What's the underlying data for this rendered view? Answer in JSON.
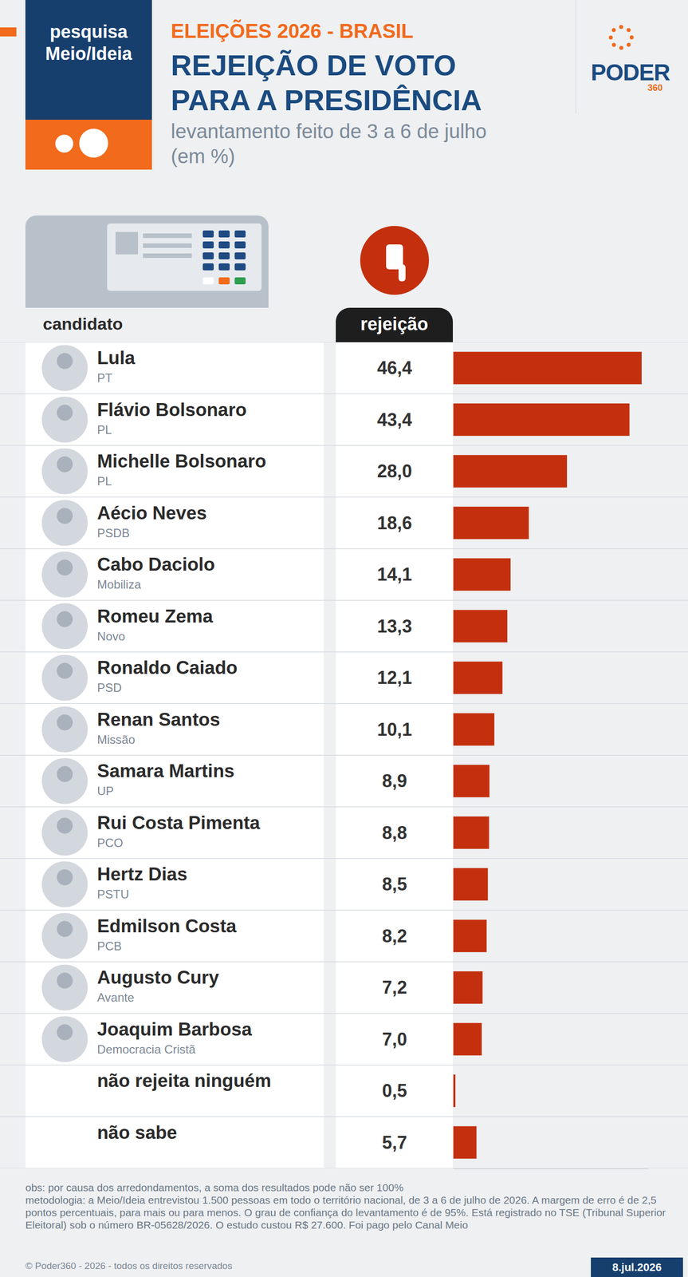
{
  "header": {
    "badge": "pesquisa Meio/Ideia",
    "kicker": "ELEIÇÕES 2026 - BRASIL",
    "logo": "PODER",
    "logo_sub": "360"
  },
  "chart_data": {
    "type": "bar",
    "orientation": "horizontal",
    "title": "REJEIÇÃO DE VOTO PARA A PRESIDÊNCIA",
    "subtitle": "levantamento feito de 3 a 6 de julho (em %)",
    "column_labels": {
      "category": "candidato",
      "value": "rejeição"
    },
    "categories": [
      "Lula",
      "Flávio Bolsonaro",
      "Michelle Bolsonaro",
      "Aécio Neves",
      "Cabo Daciolo",
      "Romeu Zema",
      "Ronaldo Caiado",
      "Renan Santos",
      "Samara Martins",
      "Rui Costa Pimenta",
      "Hertz Dias",
      "Edmilson Costa",
      "Augusto Cury",
      "Joaquim Barbosa",
      "não rejeita ninguém",
      "não sabe"
    ],
    "parties": [
      "PT",
      "PL",
      "PL",
      "PSDB",
      "Mobiliza",
      "Novo",
      "PSD",
      "Missão",
      "UP",
      "PCO",
      "PSTU",
      "PCB",
      "Avante",
      "Democracia Cristã",
      null,
      null
    ],
    "values": [
      46.4,
      43.4,
      28.0,
      18.6,
      14.1,
      13.3,
      12.1,
      10.1,
      8.9,
      8.8,
      8.5,
      8.2,
      7.2,
      7.0,
      0.5,
      5.7
    ],
    "value_labels": [
      "46,4",
      "43,4",
      "28,0",
      "18,6",
      "14,1",
      "13,3",
      "12,1",
      "10,1",
      "8,9",
      "8,8",
      "8,5",
      "8,2",
      "7,2",
      "7,0",
      "0,5",
      "5,7"
    ],
    "color": "#c4300e",
    "xlim": [
      0,
      48
    ],
    "xticks": [],
    "tick_labels": false,
    "data_labels": true,
    "grid": false
  },
  "footer": {
    "note": "obs: por causa dos arredondamentos, a soma dos resultados pode não ser 100%",
    "methodology": "metodologia: a Meio/Ideia entrevistou 1.500 pessoas em todo o território nacional, de 3 a 6 de julho de 2026. A margem de erro é de 2,5 pontos percentuais, para mais ou para menos. O grau de confiança do levantamento é de 95%. Está registrado no TSE (Tribunal Superior Eleitoral) sob o número BR-05628/2026. O estudo custou R$ 27.600. Foi pago pelo Canal Meio",
    "copyright": "© Poder360 - 2026 - todos os direitos reservados",
    "date": "8.jul.2026"
  }
}
